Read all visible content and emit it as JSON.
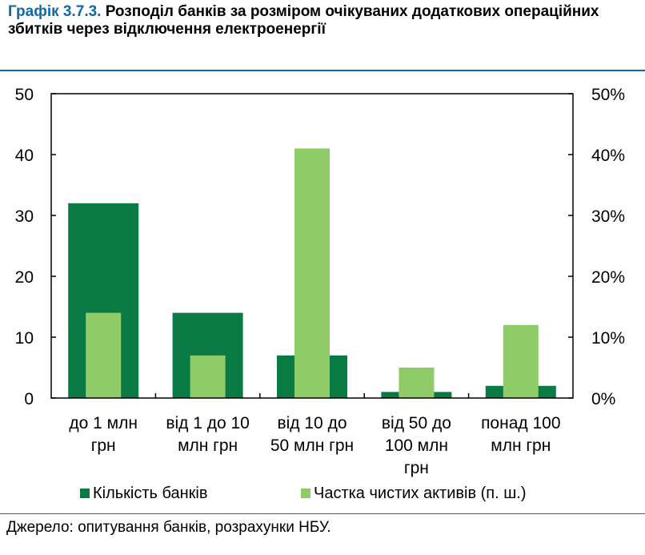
{
  "title": {
    "number": "Графік 3.7.3.",
    "text": "Розподіл банків за розміром очікуваних додаткових операційних збитків через відключення електроенергії"
  },
  "source": "Джерело: опитування банків, розрахунки НБУ.",
  "colors": {
    "primary": "#0a7a44",
    "secondary": "#8fcb67",
    "accent": "#0c6aa8"
  },
  "chart_data": {
    "type": "bar",
    "categories": [
      [
        "до 1 млн",
        "грн"
      ],
      [
        "від 1 до 10",
        "млн грн"
      ],
      [
        "від 10 до",
        "50 млн грн"
      ],
      [
        "від 50 до",
        "100 млн",
        "грн"
      ],
      [
        "понад 100",
        "млн грн"
      ]
    ],
    "series": [
      {
        "name": "Кількість банків",
        "axis": "left",
        "values": [
          32,
          14,
          7,
          1,
          2
        ]
      },
      {
        "name": "Частка чистих активів (п. ш.)",
        "axis": "right",
        "values": [
          14,
          7,
          41,
          5,
          12
        ]
      }
    ],
    "y_left": {
      "min": 0,
      "max": 50,
      "ticks": [
        "0",
        "10",
        "20",
        "30",
        "40",
        "50"
      ]
    },
    "y_right": {
      "min": 0,
      "max": 50,
      "ticks": [
        "0%",
        "10%",
        "20%",
        "30%",
        "40%",
        "50%"
      ]
    },
    "grid": false,
    "legend": "bottom"
  }
}
